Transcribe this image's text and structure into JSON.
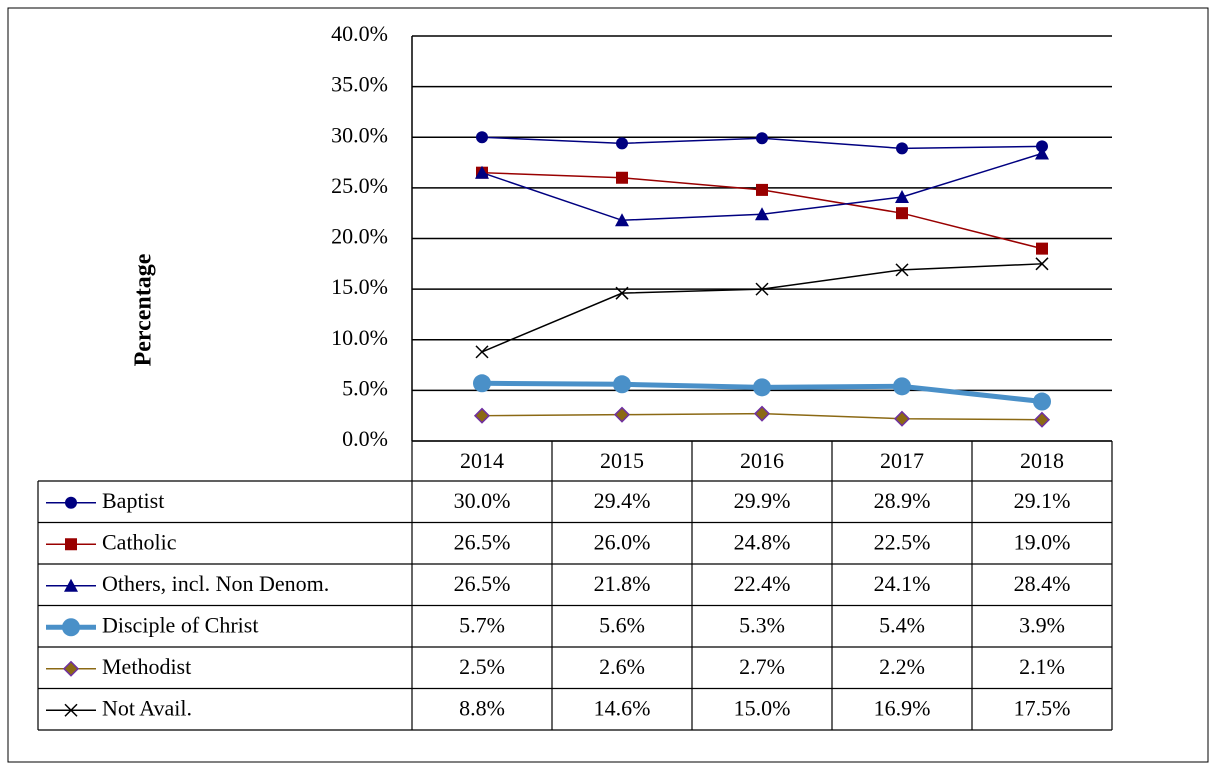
{
  "chart_data": {
    "type": "line",
    "y_label": "Percentage",
    "categories": [
      "2014",
      "2015",
      "2016",
      "2017",
      "2018"
    ],
    "ylim": [
      0,
      40
    ],
    "yticks": [
      {
        "value": 0,
        "label": "0.0%"
      },
      {
        "value": 5,
        "label": "5.0%"
      },
      {
        "value": 10,
        "label": "10.0%"
      },
      {
        "value": 15,
        "label": "15.0%"
      },
      {
        "value": 20,
        "label": "20.0%"
      },
      {
        "value": 25,
        "label": "25.0%"
      },
      {
        "value": 30,
        "label": "30.0%"
      },
      {
        "value": 35,
        "label": "35.0%"
      },
      {
        "value": 40,
        "label": "40.0%"
      }
    ],
    "grid": true,
    "series": [
      {
        "name": "Baptist",
        "color": "#000080",
        "marker": "circle",
        "line_width": 1.5,
        "values": [
          30.0,
          29.4,
          29.9,
          28.9,
          29.1
        ],
        "value_labels": [
          "30.0%",
          "29.4%",
          "29.9%",
          "28.9%",
          "29.1%"
        ]
      },
      {
        "name": "Catholic",
        "color": "#990000",
        "marker": "square",
        "line_width": 1.5,
        "values": [
          26.5,
          26.0,
          24.8,
          22.5,
          19.0
        ],
        "value_labels": [
          "26.5%",
          "26.0%",
          "24.8%",
          "22.5%",
          "19.0%"
        ]
      },
      {
        "name": "Others, incl. Non Denom.",
        "color": "#000080",
        "marker": "triangle",
        "line_width": 1.5,
        "values": [
          26.5,
          21.8,
          22.4,
          24.1,
          28.4
        ],
        "value_labels": [
          "26.5%",
          "21.8%",
          "22.4%",
          "24.1%",
          "28.4%"
        ]
      },
      {
        "name": "Disciple of Christ",
        "color": "#4a90c8",
        "marker": "bigcircle",
        "line_width": 5,
        "values": [
          5.7,
          5.6,
          5.3,
          5.4,
          3.9
        ],
        "value_labels": [
          "5.7%",
          "5.6%",
          "5.3%",
          "5.4%",
          "3.9%"
        ]
      },
      {
        "name": "Methodist",
        "color": "#8b6914",
        "marker": "diamond",
        "line_width": 1.5,
        "values": [
          2.5,
          2.6,
          2.7,
          2.2,
          2.1
        ],
        "value_labels": [
          "2.5%",
          "2.6%",
          "2.7%",
          "2.2%",
          "2.1%"
        ]
      },
      {
        "name": "Not Avail.",
        "color": "#000000",
        "marker": "x",
        "line_width": 1.5,
        "values": [
          8.8,
          14.6,
          15.0,
          16.9,
          17.5
        ],
        "value_labels": [
          "8.8%",
          "14.6%",
          "15.0%",
          "16.9%",
          "17.5%"
        ]
      }
    ]
  }
}
